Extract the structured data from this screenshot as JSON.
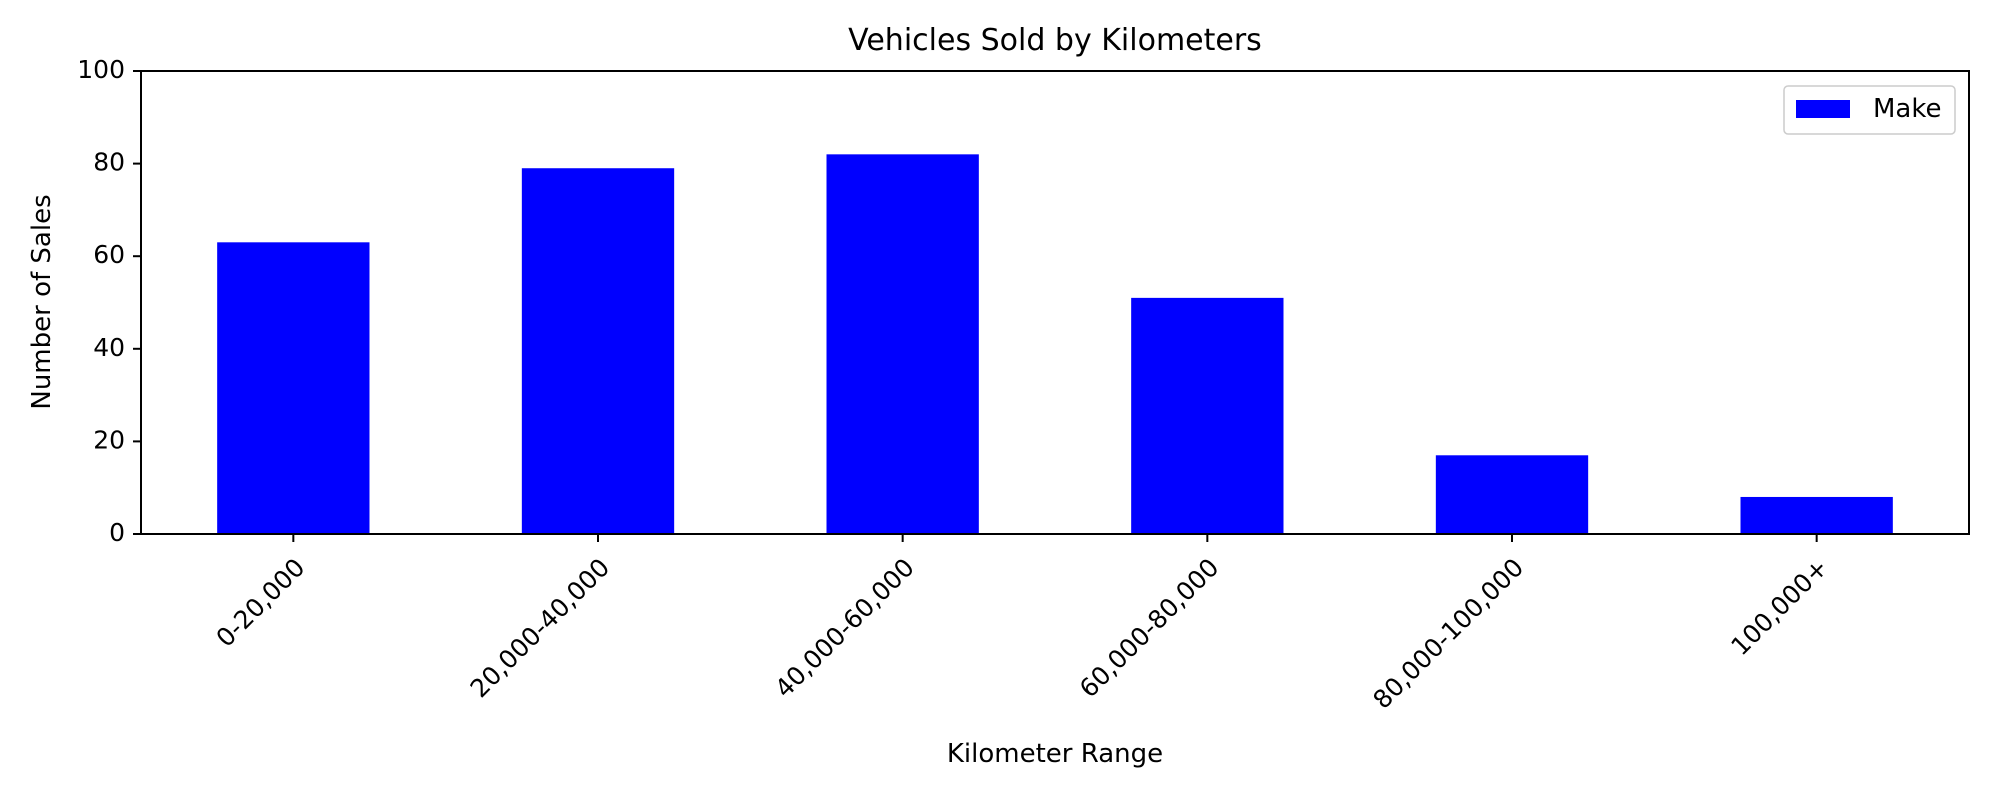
{
  "chart_data": {
    "type": "bar",
    "title": "Vehicles Sold by Kilometers",
    "xlabel": "Kilometer Range",
    "ylabel": "Number of Sales",
    "categories": [
      "0-20,000",
      "20,000-40,000",
      "40,000-60,000",
      "60,000-80,000",
      "80,000-100,000",
      "100,000+"
    ],
    "series": [
      {
        "name": "Make",
        "values": [
          63,
          79,
          82,
          51,
          17,
          8
        ],
        "color": "#0000ff"
      }
    ],
    "ylim": [
      0,
      100
    ],
    "yticks": [
      0,
      20,
      40,
      60,
      80,
      100
    ],
    "grid": false,
    "legend": {
      "position": "top-right",
      "entries": [
        "Make"
      ]
    }
  }
}
